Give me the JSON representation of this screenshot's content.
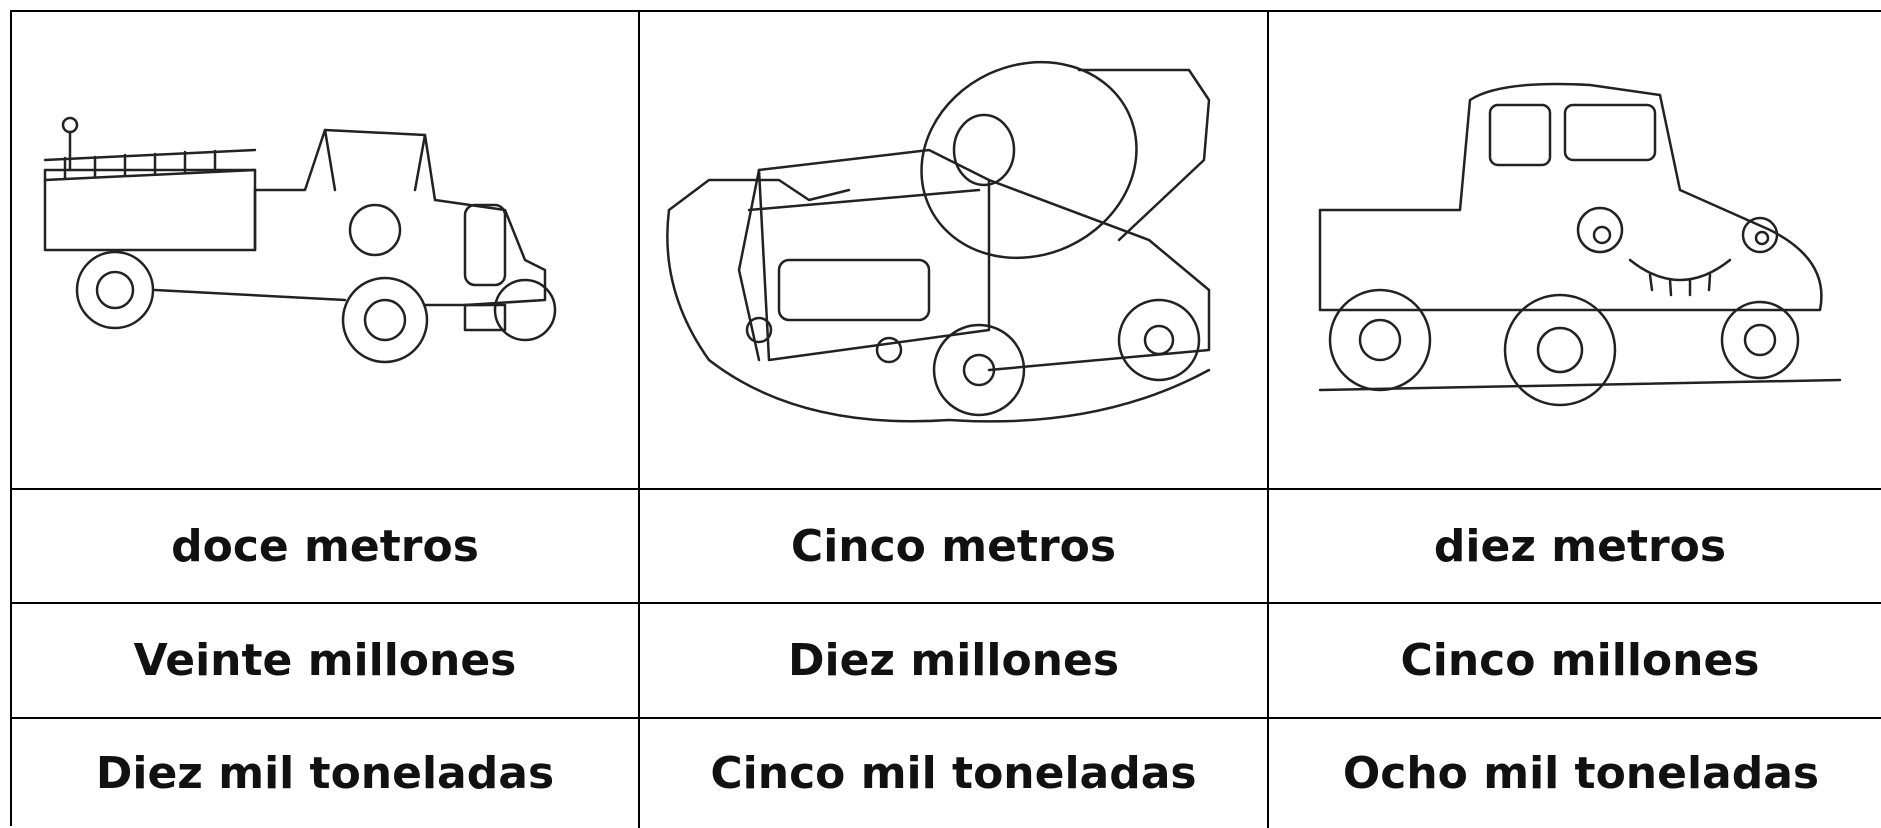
{
  "table": {
    "rows": [
      [
        "doce metros",
        "Cinco metros",
        "diez metros"
      ],
      [
        "Veinte millones",
        "Diez millones",
        "Cinco millones"
      ],
      [
        "Diez mil toneladas",
        "Cinco mil toneladas",
        "Ocho mil toneladas"
      ]
    ]
  }
}
